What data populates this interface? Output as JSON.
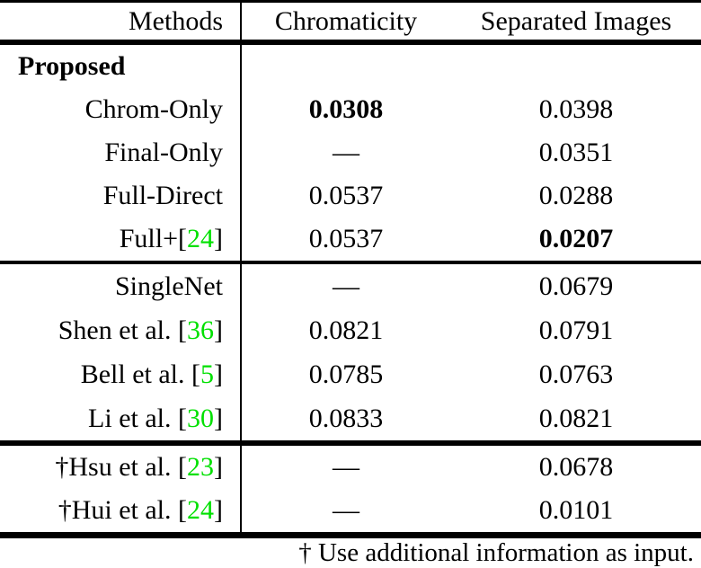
{
  "table": {
    "columns": [
      {
        "label": "Methods"
      },
      {
        "label": "Chromaticity"
      },
      {
        "label": "Separated Images"
      }
    ],
    "sections": [
      {
        "name": "proposed",
        "rows": [
          {
            "group": true,
            "method": {
              "pre": "Proposed",
              "cite": "",
              "post": ""
            },
            "chromaticity": {
              "text": ""
            },
            "separated": {
              "text": ""
            }
          },
          {
            "group": false,
            "method": {
              "pre": "Chrom-Only",
              "cite": "",
              "post": ""
            },
            "chromaticity": {
              "text": "0.0308",
              "bold": true
            },
            "separated": {
              "text": "0.0398",
              "bold": false
            }
          },
          {
            "group": false,
            "method": {
              "pre": "Final-Only",
              "cite": "",
              "post": ""
            },
            "chromaticity": {
              "text": "—",
              "bold": false
            },
            "separated": {
              "text": "0.0351",
              "bold": false
            }
          },
          {
            "group": false,
            "method": {
              "pre": "Full-Direct",
              "cite": "",
              "post": ""
            },
            "chromaticity": {
              "text": "0.0537",
              "bold": false
            },
            "separated": {
              "text": "0.0288",
              "bold": false
            }
          },
          {
            "group": false,
            "method": {
              "pre": "Full+[",
              "cite": "24",
              "post": "]"
            },
            "chromaticity": {
              "text": "0.0537",
              "bold": false
            },
            "separated": {
              "text": "0.0207",
              "bold": true
            }
          }
        ]
      },
      {
        "name": "baselines",
        "rows": [
          {
            "group": false,
            "method": {
              "pre": "SingleNet",
              "cite": "",
              "post": ""
            },
            "chromaticity": {
              "text": "—",
              "bold": false
            },
            "separated": {
              "text": "0.0679",
              "bold": false
            }
          },
          {
            "group": false,
            "method": {
              "pre": "Shen et al. [",
              "cite": "36",
              "post": "]"
            },
            "chromaticity": {
              "text": "0.0821",
              "bold": false
            },
            "separated": {
              "text": "0.0791",
              "bold": false
            }
          },
          {
            "group": false,
            "method": {
              "pre": "Bell et al. [",
              "cite": "5",
              "post": "]"
            },
            "chromaticity": {
              "text": "0.0785",
              "bold": false
            },
            "separated": {
              "text": "0.0763",
              "bold": false
            }
          },
          {
            "group": false,
            "method": {
              "pre": "Li et al. [",
              "cite": "30",
              "post": "]"
            },
            "chromaticity": {
              "text": "0.0833",
              "bold": false
            },
            "separated": {
              "text": "0.0821",
              "bold": false
            }
          }
        ]
      },
      {
        "name": "extra-input-methods",
        "rows": [
          {
            "group": false,
            "method": {
              "pre": "†Hsu et al. [",
              "cite": "23",
              "post": "]"
            },
            "chromaticity": {
              "text": "—",
              "bold": false
            },
            "separated": {
              "text": "0.0678",
              "bold": false
            }
          },
          {
            "group": false,
            "method": {
              "pre": "†Hui et al. [",
              "cite": "24",
              "post": "]"
            },
            "chromaticity": {
              "text": "—",
              "bold": false
            },
            "separated": {
              "text": "0.0101",
              "bold": false
            }
          }
        ]
      }
    ],
    "footnote": "† Use additional information as input."
  },
  "colors": {
    "text": "#000000",
    "rule": "#000000",
    "citation_green": "#00e000"
  }
}
